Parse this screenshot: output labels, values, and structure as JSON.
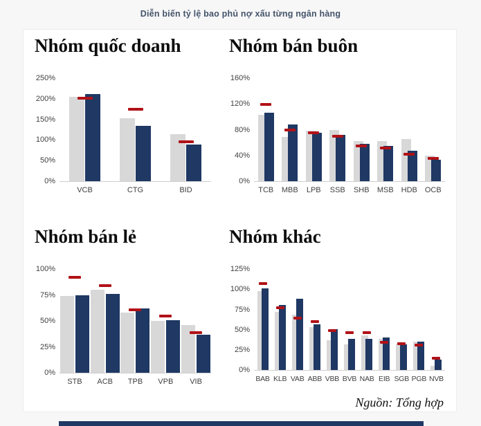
{
  "header": {
    "title": "Diễn biến tỷ lệ bao phủ nợ xấu từng ngân hàng"
  },
  "footer": {
    "source_note": "Nguồn: Tổng hợp"
  },
  "colors": {
    "accent_navy": "#1f3864",
    "bar_gray": "#d8d8d9",
    "bar_navy": "#1f3864",
    "marker_red": "#b11117",
    "header_text": "#44546a",
    "page_bg": "#f7f7f8",
    "card_bg": "#ffffff"
  },
  "chart_data": [
    {
      "type": "bar",
      "title": "Nhóm quốc doanh",
      "categories": [
        "VCB",
        "CTG",
        "BID"
      ],
      "series": [
        {
          "name": "gray-bars",
          "values": [
            205,
            152,
            115
          ]
        },
        {
          "name": "navy-bars",
          "values": [
            212,
            134,
            89
          ]
        },
        {
          "name": "red-dash-marker",
          "values": [
            202,
            175,
            95
          ]
        }
      ],
      "ylim": [
        0,
        250
      ],
      "yticks": [
        "0%",
        "50%",
        "100%",
        "150%",
        "200%",
        "250%"
      ],
      "ylabel": "",
      "xlabel": "",
      "grid": false,
      "legend": "none"
    },
    {
      "type": "bar",
      "title": "Nhóm bán buôn",
      "categories": [
        "TCB",
        "MBB",
        "LPB",
        "SSB",
        "SHB",
        "MSB",
        "HDB",
        "OCB"
      ],
      "series": [
        {
          "name": "gray-bars",
          "values": [
            103,
            69,
            78,
            80,
            62,
            62,
            66,
            40
          ]
        },
        {
          "name": "navy-bars",
          "values": [
            106,
            88,
            75,
            72,
            58,
            55,
            47,
            33
          ]
        },
        {
          "name": "red-dash-marker",
          "values": [
            119,
            79,
            75,
            70,
            55,
            52,
            42,
            35
          ]
        }
      ],
      "ylim": [
        0,
        160
      ],
      "yticks": [
        "0%",
        "40%",
        "80%",
        "120%",
        "160%"
      ],
      "ylabel": "",
      "xlabel": "",
      "grid": false,
      "legend": "none"
    },
    {
      "type": "bar",
      "title": "Nhóm bán lẻ",
      "categories": [
        "STB",
        "ACB",
        "TPB",
        "VPB",
        "VIB"
      ],
      "series": [
        {
          "name": "gray-bars",
          "values": [
            74,
            80,
            58,
            50,
            46
          ]
        },
        {
          "name": "navy-bars",
          "values": [
            75,
            76,
            62,
            51,
            37
          ]
        },
        {
          "name": "red-dash-marker",
          "values": [
            92,
            84,
            61,
            55,
            39
          ]
        }
      ],
      "ylim": [
        0,
        100
      ],
      "yticks": [
        "0%",
        "25%",
        "50%",
        "75%",
        "100%"
      ],
      "ylabel": "",
      "xlabel": "",
      "grid": false,
      "legend": "none"
    },
    {
      "type": "bar",
      "title": "Nhóm khác",
      "categories": [
        "BAB",
        "KLB",
        "VAB",
        "ABB",
        "VBB",
        "BVB",
        "NAB",
        "EIB",
        "SGB",
        "PGB",
        "NVB"
      ],
      "series": [
        {
          "name": "gray-bars",
          "values": [
            98,
            72,
            69,
            53,
            37,
            32,
            43,
            39,
            33,
            35,
            5
          ]
        },
        {
          "name": "navy-bars",
          "values": [
            101,
            81,
            88,
            57,
            51,
            39,
            39,
            40,
            32,
            35,
            13
          ]
        },
        {
          "name": "red-dash-marker",
          "values": [
            107,
            77,
            64,
            60,
            49,
            46,
            46,
            34,
            33,
            31,
            15
          ]
        }
      ],
      "ylim": [
        0,
        125
      ],
      "yticks": [
        "0%",
        "25%",
        "50%",
        "75%",
        "100%",
        "125%"
      ],
      "ylabel": "",
      "xlabel": "",
      "grid": false,
      "legend": "none"
    }
  ]
}
